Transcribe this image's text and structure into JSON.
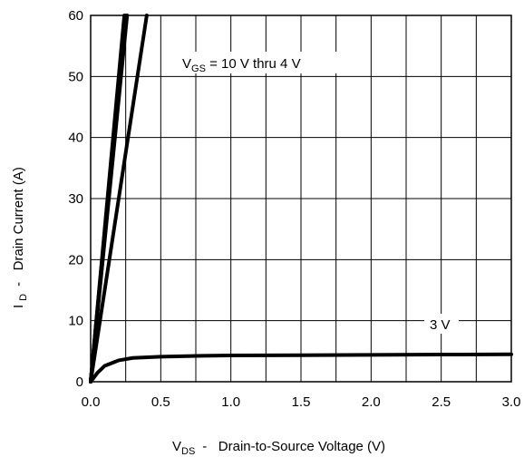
{
  "chart_data": {
    "type": "line",
    "title": "",
    "xlabel": {
      "symbol": "V",
      "subscript": "DS",
      "text": "-   Drain-to-Source Voltage (V)"
    },
    "ylabel": {
      "symbol": "I",
      "subscript": "D",
      "text": "-   Drain Current (A)"
    },
    "xlim": [
      0,
      3.0
    ],
    "ylim": [
      0,
      60
    ],
    "x_ticks": [
      "0.0",
      "0.5",
      "1.0",
      "1.5",
      "2.0",
      "2.5",
      "3.0"
    ],
    "y_ticks": [
      "0",
      "10",
      "20",
      "30",
      "40",
      "50",
      "60"
    ],
    "grid": true,
    "annotations": [
      {
        "label": "V",
        "subscript": "GS",
        "rest": " = 10 V thru 4 V"
      },
      {
        "label": "3 V"
      }
    ],
    "series": [
      {
        "x": [
          0,
          0.24
        ],
        "y": [
          0,
          60
        ]
      },
      {
        "x": [
          0,
          0.245
        ],
        "y": [
          0,
          60
        ]
      },
      {
        "x": [
          0,
          0.25
        ],
        "y": [
          0,
          60
        ]
      },
      {
        "x": [
          0,
          0.255
        ],
        "y": [
          0,
          60
        ]
      },
      {
        "x": [
          0,
          0.26
        ],
        "y": [
          0,
          60
        ]
      },
      {
        "x": [
          0,
          0.4
        ],
        "y": [
          0,
          60
        ]
      },
      {
        "x": [
          0,
          0.05,
          0.1,
          0.2,
          0.3,
          0.5,
          0.8,
          1.0,
          1.5,
          2.0,
          2.5,
          3.0
        ],
        "y": [
          0,
          1.5,
          2.6,
          3.5,
          3.9,
          4.1,
          4.25,
          4.3,
          4.35,
          4.4,
          4.45,
          4.5
        ]
      }
    ]
  }
}
